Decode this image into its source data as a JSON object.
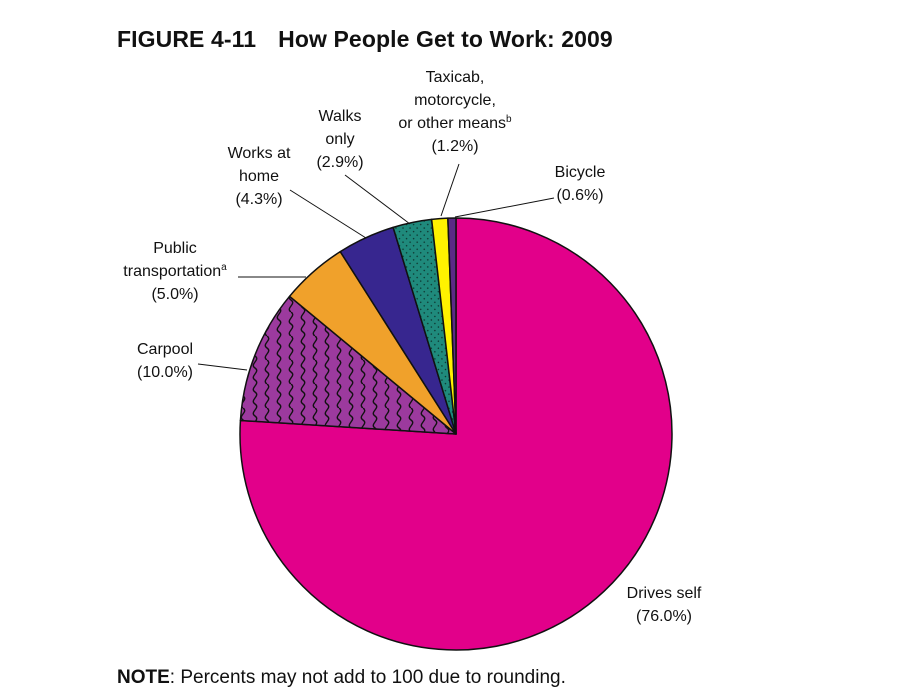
{
  "figure": {
    "number": "FIGURE 4-11",
    "title": "How People Get to Work: 2009"
  },
  "note": {
    "label": "NOTE",
    "text": ": Percents may not add to 100 due to rounding."
  },
  "chart_data": {
    "type": "pie",
    "title": "How People Get to Work: 2009",
    "start_angle": "12 o'clock",
    "direction": "clockwise",
    "legend": "none (direct labels with leader lines)",
    "slices": [
      {
        "label_lines": [
          "Drives self"
        ],
        "value": 76.0,
        "value_label": "(76.0%)",
        "color": "#e2008a",
        "pattern": "solid",
        "leader": false
      },
      {
        "label_lines": [
          "Carpool"
        ],
        "value": 10.0,
        "value_label": "(10.0%)",
        "color": "#9c3a9e",
        "pattern": "squiggle",
        "leader": true
      },
      {
        "label_lines": [
          "Public",
          "transportation"
        ],
        "superscript": "a",
        "value": 5.0,
        "value_label": "(5.0%)",
        "color": "#f0a12b",
        "pattern": "solid",
        "leader": true
      },
      {
        "label_lines": [
          "Works at",
          "home"
        ],
        "value": 4.3,
        "value_label": "(4.3%)",
        "color": "#37268f",
        "pattern": "solid",
        "leader": true
      },
      {
        "label_lines": [
          "Walks",
          "only"
        ],
        "value": 2.9,
        "value_label": "(2.9%)",
        "color": "#1f8a7c",
        "pattern": "dotted",
        "leader": true
      },
      {
        "label_lines": [
          "Taxicab,",
          "motorcycle,",
          "or other means"
        ],
        "superscript": "b",
        "value": 1.2,
        "value_label": "(1.2%)",
        "color": "#fff200",
        "pattern": "solid",
        "leader": true
      },
      {
        "label_lines": [
          "Bicycle"
        ],
        "value": 0.6,
        "value_label": "(0.6%)",
        "color": "#5b2a86",
        "pattern": "solid",
        "leader": true
      }
    ]
  }
}
